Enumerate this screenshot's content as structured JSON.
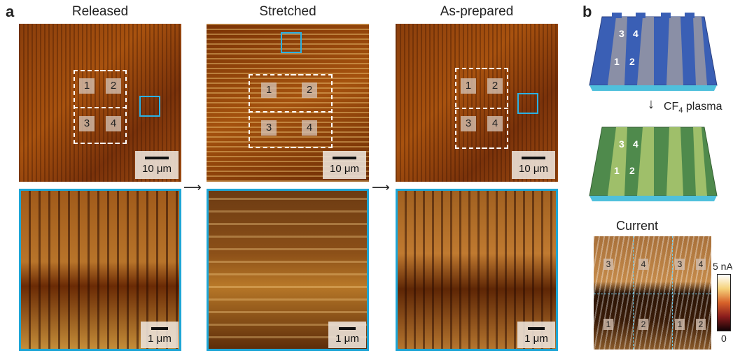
{
  "panel_a": {
    "label": "a",
    "titles": [
      "Released",
      "Stretched",
      "As-prepared"
    ],
    "top_scale": "10 μm",
    "bottom_scale": "1 μm",
    "domain_numbers": [
      "1",
      "2",
      "3",
      "4"
    ]
  },
  "panel_b": {
    "label": "b",
    "device_numbers_top": [
      "3",
      "4"
    ],
    "device_numbers_bottom": [
      "1",
      "2"
    ],
    "plasma_label": "CF",
    "plasma_subscript": "4",
    "plasma_suffix": " plasma",
    "current_title": "Current",
    "colorbar_max": "5 nA",
    "colorbar_min": "0",
    "current_numbers_top": [
      "3",
      "4",
      "3",
      "4"
    ],
    "current_numbers_bottom": [
      "1",
      "2",
      "1",
      "2"
    ]
  }
}
